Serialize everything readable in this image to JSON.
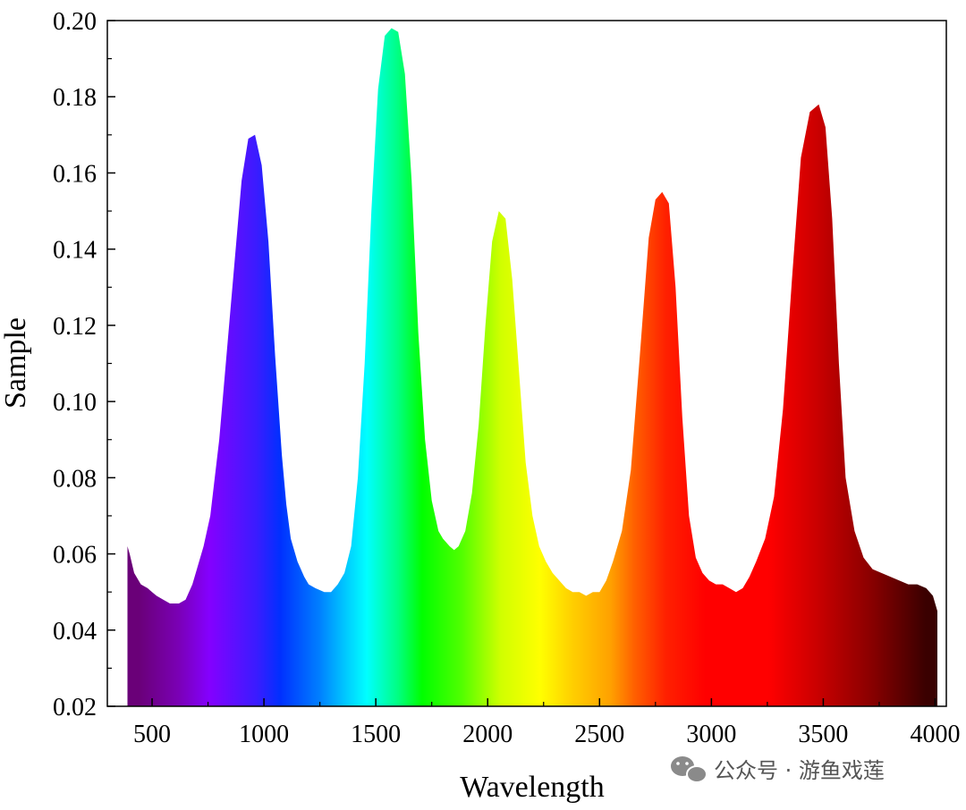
{
  "chart_data": {
    "type": "area",
    "title": "",
    "xlabel": "Wavelength",
    "ylabel": "Sample",
    "xlim": [
      300,
      4050
    ],
    "ylim": [
      0.02,
      0.2
    ],
    "xticks": [
      500,
      1000,
      1500,
      2000,
      2500,
      3000,
      3500,
      4000
    ],
    "yticks": [
      0.02,
      0.04,
      0.06,
      0.08,
      0.1,
      0.12,
      0.14,
      0.16,
      0.18,
      0.2
    ],
    "ytick_labels": [
      "0.02",
      "0.04",
      "0.06",
      "0.08",
      "0.10",
      "0.12",
      "0.14",
      "0.16",
      "0.18",
      "0.20"
    ],
    "fill": "rainbow gradient by wavelength",
    "series": [
      {
        "name": "Sample",
        "x": [
          390,
          400,
          420,
          450,
          480,
          500,
          520,
          550,
          580,
          600,
          620,
          650,
          680,
          700,
          730,
          760,
          800,
          850,
          900,
          930,
          960,
          990,
          1020,
          1050,
          1080,
          1100,
          1120,
          1150,
          1180,
          1200,
          1230,
          1270,
          1300,
          1330,
          1360,
          1390,
          1420,
          1450,
          1480,
          1510,
          1540,
          1570,
          1600,
          1630,
          1660,
          1690,
          1720,
          1750,
          1780,
          1800,
          1830,
          1850,
          1870,
          1900,
          1930,
          1960,
          1990,
          2020,
          2050,
          2080,
          2110,
          2140,
          2170,
          2200,
          2230,
          2260,
          2290,
          2320,
          2350,
          2380,
          2410,
          2440,
          2470,
          2500,
          2530,
          2560,
          2600,
          2640,
          2680,
          2720,
          2750,
          2780,
          2810,
          2840,
          2870,
          2900,
          2930,
          2960,
          2990,
          3020,
          3050,
          3080,
          3110,
          3140,
          3170,
          3200,
          3240,
          3280,
          3320,
          3360,
          3400,
          3440,
          3480,
          3510,
          3540,
          3570,
          3600,
          3640,
          3680,
          3720,
          3760,
          3800,
          3840,
          3880,
          3920,
          3960,
          3990,
          4010
        ],
        "y": [
          0.062,
          0.06,
          0.055,
          0.052,
          0.051,
          0.05,
          0.049,
          0.048,
          0.047,
          0.047,
          0.047,
          0.048,
          0.052,
          0.056,
          0.062,
          0.07,
          0.09,
          0.124,
          0.158,
          0.169,
          0.17,
          0.162,
          0.142,
          0.112,
          0.086,
          0.073,
          0.064,
          0.058,
          0.054,
          0.052,
          0.051,
          0.05,
          0.05,
          0.052,
          0.055,
          0.062,
          0.08,
          0.11,
          0.15,
          0.182,
          0.196,
          0.198,
          0.197,
          0.186,
          0.158,
          0.118,
          0.09,
          0.074,
          0.066,
          0.064,
          0.062,
          0.061,
          0.062,
          0.066,
          0.076,
          0.094,
          0.12,
          0.142,
          0.15,
          0.148,
          0.132,
          0.108,
          0.084,
          0.07,
          0.062,
          0.058,
          0.055,
          0.053,
          0.051,
          0.05,
          0.05,
          0.049,
          0.05,
          0.05,
          0.053,
          0.058,
          0.066,
          0.082,
          0.112,
          0.143,
          0.153,
          0.155,
          0.152,
          0.13,
          0.096,
          0.07,
          0.059,
          0.055,
          0.053,
          0.052,
          0.052,
          0.051,
          0.05,
          0.051,
          0.054,
          0.058,
          0.064,
          0.075,
          0.098,
          0.132,
          0.164,
          0.176,
          0.178,
          0.172,
          0.148,
          0.11,
          0.08,
          0.066,
          0.059,
          0.056,
          0.055,
          0.054,
          0.053,
          0.052,
          0.052,
          0.051,
          0.049,
          0.045
        ]
      }
    ]
  },
  "watermark": {
    "icon": "wechat-icon",
    "text": "公众号 · 游鱼戏莲"
  }
}
